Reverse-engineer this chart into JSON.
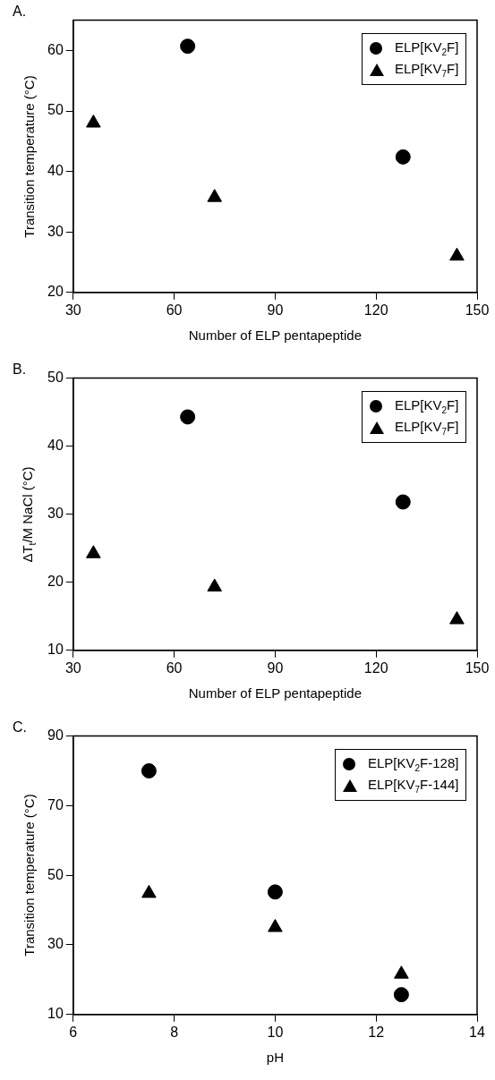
{
  "chart_data": [
    {
      "type": "scatter",
      "title": "A.",
      "xlabel": "Number of ELP pentapeptide",
      "ylabel": "Transition temperature (°C)",
      "xlim": [
        30,
        150
      ],
      "xticks": [
        30,
        60,
        90,
        120,
        150
      ],
      "ylim": [
        20,
        65
      ],
      "yticks": [
        20,
        30,
        40,
        50,
        60
      ],
      "grid": false,
      "legend": "top right",
      "series": [
        {
          "name": "ELP[KV$_{2}$F]",
          "color": "#000000",
          "marker": "circle",
          "x": [
            64,
            128
          ],
          "values": [
            60.7,
            42.4
          ]
        },
        {
          "name": "ELP[KV$_{7}$F]",
          "color": "#000000",
          "marker": "triangle",
          "x": [
            36,
            72,
            144
          ],
          "values": [
            48,
            35.7,
            26
          ]
        }
      ]
    },
    {
      "type": "scatter",
      "title": "B.",
      "xlabel": "Number of ELP pentapeptide",
      "ylabel": "ΔT$_{t}$/M NaCl (°C)",
      "xlim": [
        30,
        150
      ],
      "xticks": [
        30,
        60,
        90,
        120,
        150
      ],
      "ylim": [
        10,
        50
      ],
      "yticks": [
        10,
        20,
        30,
        40,
        50
      ],
      "grid": false,
      "legend": "top right",
      "series": [
        {
          "name": "ELP[KV$_{2}$F]",
          "color": "#000000",
          "marker": "circle",
          "x": [
            64,
            128
          ],
          "values": [
            44.3,
            31.8
          ]
        },
        {
          "name": "ELP[KV$_{7}$F]",
          "color": "#000000",
          "marker": "triangle",
          "x": [
            36,
            72,
            144
          ],
          "values": [
            24.2,
            19.3,
            14.5
          ]
        }
      ]
    },
    {
      "type": "scatter",
      "title": "C.",
      "xlabel": "pH",
      "ylabel": "Transition temperature (°C)",
      "xlim": [
        6,
        14
      ],
      "xticks": [
        6,
        8,
        10,
        12,
        14
      ],
      "ylim": [
        10,
        90
      ],
      "yticks": [
        10,
        30,
        50,
        70,
        90
      ],
      "grid": false,
      "legend": "top right",
      "series": [
        {
          "name": "ELP[KV$_{2}$F-128]",
          "color": "#000000",
          "marker": "circle",
          "x": [
            7.5,
            10,
            12.5
          ],
          "values": [
            80,
            45.2,
            15.7
          ]
        },
        {
          "name": "ELP[KV$_{7}$F-144]",
          "color": "#000000",
          "marker": "triangle",
          "x": [
            7.5,
            10,
            12.5
          ],
          "values": [
            44.8,
            35,
            21.6
          ]
        }
      ]
    }
  ]
}
